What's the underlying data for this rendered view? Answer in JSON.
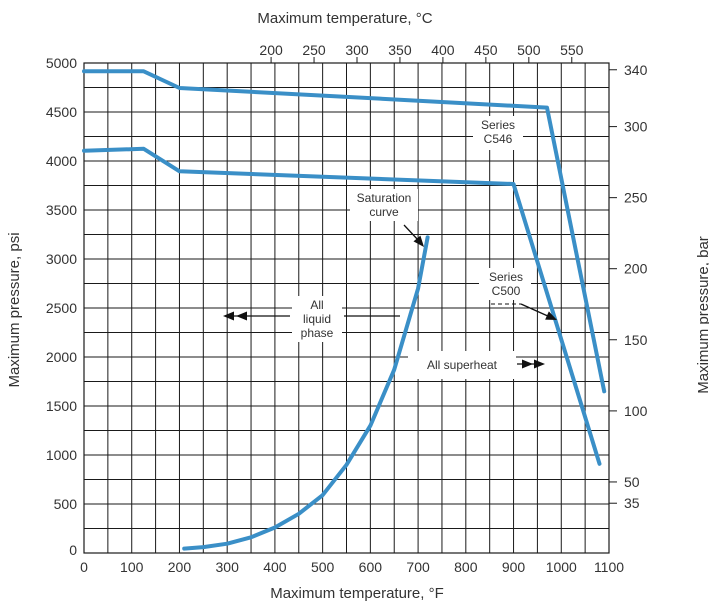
{
  "colors": {
    "curve": "#3a8fc7",
    "grid": "#1a1a1a",
    "text": "#333333",
    "background": "#ffffff"
  },
  "chart_data": {
    "type": "line",
    "title": "",
    "xlabel": "Maximum temperature, °F",
    "ylabel": "Maximum pressure, psi",
    "x2label": "Maximum temperature, °C",
    "y2label": "Maximum pressure, bar",
    "xlim": [
      0,
      1100
    ],
    "ylim": [
      0,
      5000
    ],
    "grid": true,
    "x_ticks": [
      "0",
      "100",
      "200",
      "300",
      "400",
      "500",
      "600",
      "700",
      "800",
      "900",
      "1000",
      "1100"
    ],
    "y_ticks": [
      "0",
      "500",
      "1000",
      "1500",
      "2000",
      "2500",
      "3000",
      "3500",
      "4000",
      "4500",
      "5000"
    ],
    "x2_ticks": [
      {
        "label": "200",
        "f": 392
      },
      {
        "label": "250",
        "f": 482
      },
      {
        "label": "300",
        "f": 572
      },
      {
        "label": "350",
        "f": 662
      },
      {
        "label": "400",
        "f": 752
      },
      {
        "label": "450",
        "f": 842
      },
      {
        "label": "500",
        "f": 932
      },
      {
        "label": "550",
        "f": 1022
      }
    ],
    "y2_ticks": [
      {
        "label": "340",
        "psi": 4931
      },
      {
        "label": "300",
        "psi": 4351
      },
      {
        "label": "250",
        "psi": 3626
      },
      {
        "label": "200",
        "psi": 2901
      },
      {
        "label": "150",
        "psi": 2176
      },
      {
        "label": "100",
        "psi": 1450
      },
      {
        "label": "50",
        "psi": 725
      },
      {
        "label": "35",
        "psi": 508
      }
    ],
    "series": [
      {
        "key": "c546",
        "x": [
          0,
          125,
          200,
          970,
          1090
        ],
        "y": [
          4915,
          4915,
          4745,
          4545,
          1650
        ]
      },
      {
        "key": "c500",
        "x": [
          0,
          125,
          200,
          900,
          1080
        ],
        "y": [
          4105,
          4125,
          3895,
          3765,
          910
        ]
      },
      {
        "key": "saturation",
        "x": [
          210,
          250,
          300,
          350,
          400,
          450,
          500,
          550,
          600,
          650,
          700,
          720
        ],
        "y": [
          45,
          60,
          95,
          160,
          260,
          400,
          590,
          900,
          1300,
          1870,
          2700,
          3220
        ]
      }
    ],
    "annotations": {
      "c546": [
        "Series",
        "C546"
      ],
      "c500": [
        "Series",
        "C500"
      ],
      "saturation": [
        "Saturation",
        "curve"
      ],
      "liquid": [
        "All",
        "liquid",
        "phase"
      ],
      "superheat": "All superheat"
    }
  }
}
